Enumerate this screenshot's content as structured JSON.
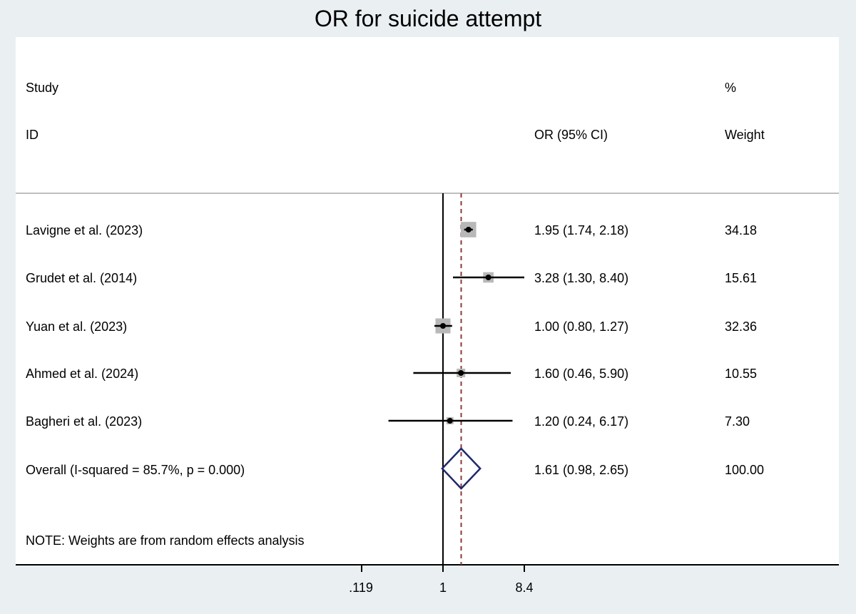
{
  "chart_data": {
    "type": "forest",
    "title": "OR for suicide attempt",
    "headers": {
      "study_top": "Study",
      "study_bottom": "ID",
      "effect": "OR (95% CI)",
      "weight_top": "%",
      "weight_bottom": "Weight"
    },
    "studies": [
      {
        "label": "Lavigne et al. (2023)",
        "or": 1.95,
        "lo": 1.74,
        "hi": 2.18,
        "text": "1.95 (1.74, 2.18)",
        "weight": "34.18",
        "w": 34.18
      },
      {
        "label": "Grudet et al. (2014)",
        "or": 3.28,
        "lo": 1.3,
        "hi": 8.4,
        "text": "3.28 (1.30, 8.40)",
        "weight": "15.61",
        "w": 15.61
      },
      {
        "label": "Yuan et al. (2023)",
        "or": 1.0,
        "lo": 0.8,
        "hi": 1.27,
        "text": "1.00 (0.80, 1.27)",
        "weight": "32.36",
        "w": 32.36
      },
      {
        "label": "Ahmed et al. (2024)",
        "or": 1.6,
        "lo": 0.46,
        "hi": 5.9,
        "text": "1.60 (0.46, 5.90)",
        "weight": "10.55",
        "w": 10.55
      },
      {
        "label": "Bagheri et al. (2023)",
        "or": 1.2,
        "lo": 0.24,
        "hi": 6.17,
        "text": "1.20 (0.24, 6.17)",
        "weight": "7.30",
        "w": 7.3
      }
    ],
    "overall": {
      "label": "Overall  (I-squared = 85.7%, p = 0.000)",
      "or": 1.61,
      "lo": 0.98,
      "hi": 2.65,
      "text": "1.61 (0.98, 2.65)",
      "weight": "100.00"
    },
    "note": "NOTE: Weights are from random effects analysis",
    "x_scale": "log",
    "x_ticks": [
      0.119,
      1,
      8.4
    ],
    "x_tick_labels": [
      ".119",
      "1",
      "8.4"
    ]
  }
}
